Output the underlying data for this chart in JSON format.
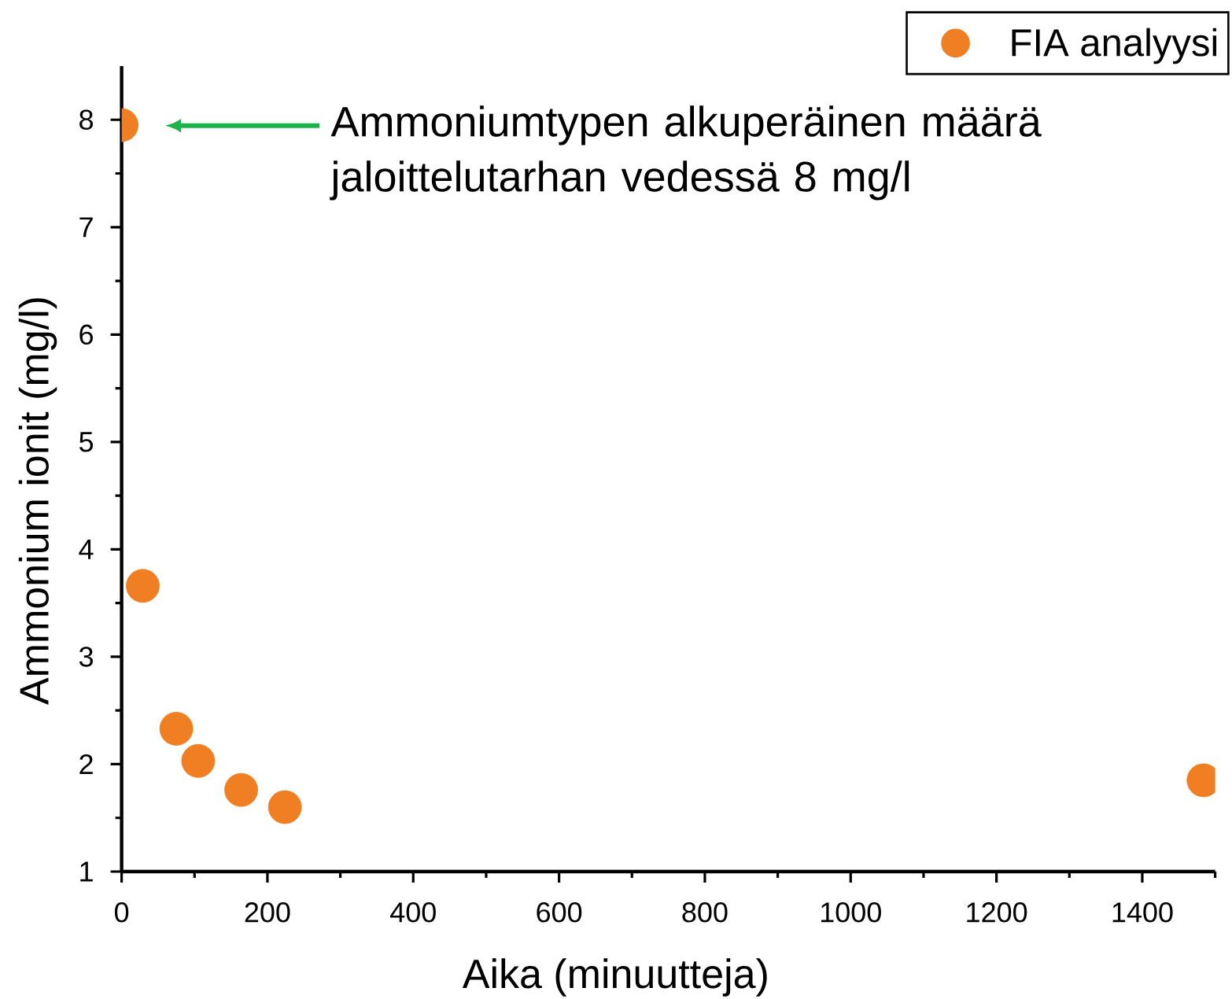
{
  "chart_data": {
    "type": "scatter",
    "xlabel": "Aika (minuutteja)",
    "ylabel": "Ammonium ionit (mg/l)",
    "annotations": [
      "Ammoniumtypen alkuperäinen määrä jaloittelutarhan vedessä 8 mg/l"
    ],
    "x": [
      0,
      29,
      75,
      105,
      164,
      224,
      1484
    ],
    "series": [
      {
        "name": "FIA analyysi",
        "color": "#ef7f22",
        "values": [
          7.95,
          3.66,
          2.33,
          2.03,
          1.76,
          1.6,
          1.85
        ]
      }
    ],
    "xlim": [
      0,
      1500
    ],
    "xticks": [
      0,
      {
        "value": 100,
        "label": null
      },
      200,
      {
        "value": 300,
        "label": null
      },
      400,
      {
        "value": 500,
        "label": null
      },
      600,
      {
        "value": 700,
        "label": null
      },
      800,
      {
        "value": 900,
        "label": null
      },
      1000,
      {
        "value": 1100,
        "label": null
      },
      1200,
      {
        "value": 1300,
        "label": null
      },
      1400,
      {
        "value": 1500,
        "label": null
      }
    ],
    "ylim": [
      1,
      8.5
    ],
    "yticks": [
      1,
      {
        "value": 1.5,
        "label": null
      },
      2,
      {
        "value": 2.5,
        "label": null
      },
      3,
      {
        "value": 3.5,
        "label": null
      },
      4,
      {
        "value": 4.5,
        "label": null
      },
      5,
      {
        "value": 5.5,
        "label": null
      },
      6,
      {
        "value": 6.5,
        "label": null
      },
      7,
      {
        "value": 7.5,
        "label": null
      },
      8
    ],
    "grid": false,
    "legend": "top right",
    "marker": "circle"
  }
}
